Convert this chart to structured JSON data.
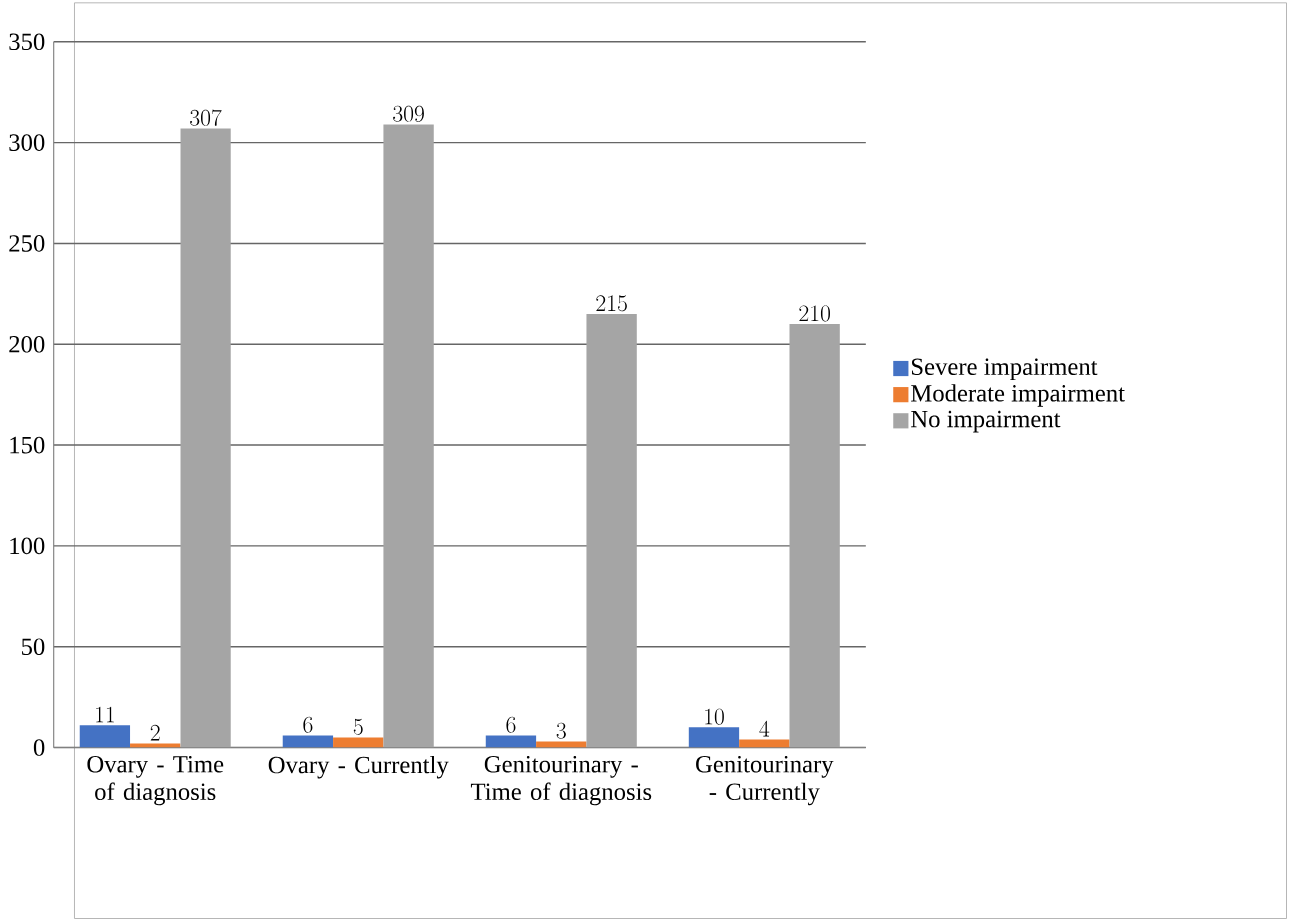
{
  "chart_data": {
    "type": "bar",
    "categories": [
      "Ovary - Time of diagnosis",
      "Ovary - Currently",
      "Genitourinary - Time of diagnosis",
      "Genitourinary - Currently"
    ],
    "series": [
      {
        "name": "Severe impairment",
        "color": "#4472c4",
        "values": [
          11,
          6,
          6,
          10
        ]
      },
      {
        "name": "Moderate impairment",
        "color": "#ed7d31",
        "values": [
          2,
          5,
          3,
          4
        ]
      },
      {
        "name": "No impairment",
        "color": "#a5a5a5",
        "values": [
          307,
          309,
          215,
          210
        ]
      }
    ],
    "ylim": [
      0,
      350
    ],
    "yticks": [
      0,
      50,
      100,
      150,
      200,
      250,
      300,
      350
    ],
    "grid": "y",
    "legend": "right",
    "data_labels": true
  }
}
